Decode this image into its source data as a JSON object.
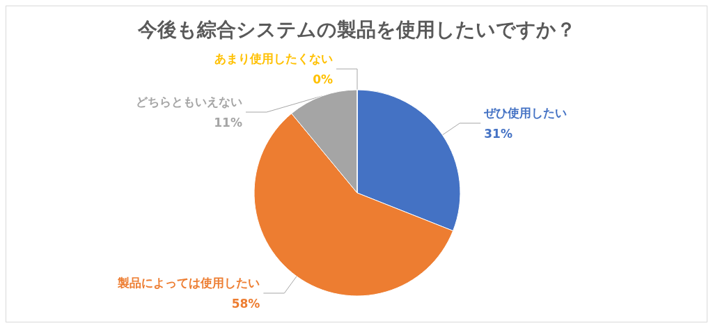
{
  "chart_data": {
    "type": "pie",
    "title": "今後も綜合システムの製品を使用したいですか？",
    "categories": [
      "ぜひ使用したい",
      "製品によっては使用したい",
      "どちらともいえない",
      "あまり使用したくない"
    ],
    "values": [
      31,
      58,
      11,
      0
    ],
    "value_labels": [
      "31%",
      "58%",
      "11%",
      "0%"
    ],
    "colors": [
      "#4472c4",
      "#ed7d31",
      "#a5a5a5",
      "#ffc000"
    ],
    "legend": false
  }
}
